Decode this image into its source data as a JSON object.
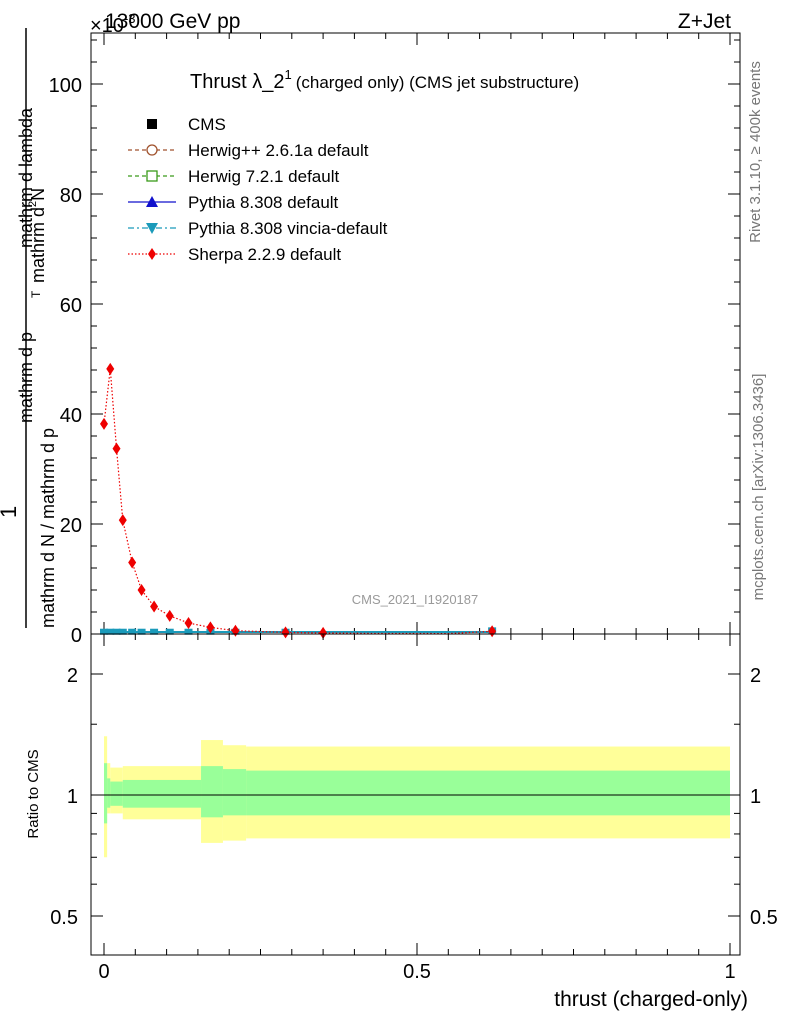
{
  "header": {
    "energy_label": "13000 GeV pp",
    "process_label": "Z+Jet",
    "exponent_label": "×10",
    "exponent_sup": "-3"
  },
  "chart_data": [
    {
      "type": "line",
      "panel": "main",
      "title": "Thrust λ_2",
      "title_sup": "1",
      "subtitle": "(charged only) (CMS jet substructure)",
      "ylabel_numerator": "mathrm d",
      "ylabel_numerator_sup": "2",
      "ylabel_numerator_tail": "N",
      "ylabel_prefix": "1",
      "ylabel_denominator": "mathrm d N / mathrm d p",
      "ylabel_denominator_mid": "mathrm d p",
      "ylabel_denominator_tail": "mathrm d lambda",
      "ylabel_sub": "T",
      "watermark": "CMS_2021_I1920187",
      "xlim": [
        0,
        1
      ],
      "ylim": [
        0,
        110
      ],
      "yticks": [
        0,
        20,
        40,
        60,
        80,
        100
      ],
      "legend_position": "top-left",
      "legend": [
        {
          "label": "CMS",
          "color": "#000000",
          "marker": "filled-square",
          "line": "none"
        },
        {
          "label": "Herwig++ 2.6.1a default",
          "color": "#a0522d",
          "marker": "open-circle",
          "line": "dashed"
        },
        {
          "label": "Herwig 7.2.1 default",
          "color": "#3a9a1a",
          "marker": "open-square",
          "line": "dashed"
        },
        {
          "label": "Pythia 8.308 default",
          "color": "#1010cc",
          "marker": "filled-triangle-up",
          "line": "solid"
        },
        {
          "label": "Pythia 8.308 vincia-default",
          "color": "#1a9aba",
          "marker": "filled-triangle-down",
          "line": "dashdot"
        },
        {
          "label": "Sherpa 2.2.9 default",
          "color": "#ee0000",
          "marker": "filled-diamond",
          "line": "dotted"
        }
      ],
      "series": [
        {
          "name": "Sherpa 2.2.9 default",
          "x": [
            0.0,
            0.01,
            0.02,
            0.03,
            0.045,
            0.06,
            0.08,
            0.105,
            0.135,
            0.17,
            0.21,
            0.29,
            0.35,
            0.43,
            0.55,
            0.62
          ],
          "values": [
            38.2,
            48.2,
            33.7,
            20.7,
            13.0,
            8.0,
            5.0,
            3.3,
            2.0,
            1.2,
            0.6,
            0.3,
            0.2,
            0.1,
            0.08,
            0.5
          ]
        },
        {
          "name": "CMS",
          "x": [
            0.0,
            0.01,
            0.02,
            0.03,
            0.045,
            0.06,
            0.08,
            0.105,
            0.135,
            0.17,
            0.21,
            0.29,
            0.62
          ],
          "values": [
            0.05,
            0.05,
            0.05,
            0.05,
            0.05,
            0.05,
            0.05,
            0.05,
            0.05,
            0.05,
            0.05,
            0.05,
            0.3
          ]
        }
      ]
    },
    {
      "type": "area",
      "panel": "ratio",
      "ylabel": "Ratio to CMS",
      "xlabel": "thrust (charged-only)",
      "xlim": [
        0,
        1
      ],
      "ylim": [
        0.4,
        2.3
      ],
      "yscale": "log",
      "yticks": [
        0.5,
        1,
        2
      ],
      "ytick_labels": [
        "0.5",
        "1",
        "2"
      ],
      "xticks": [
        0,
        0.5,
        1
      ],
      "xtick_labels": [
        "0",
        "0.5",
        "1"
      ],
      "bins": [
        0.0,
        0.005,
        0.01,
        0.03,
        0.155,
        0.19,
        0.227,
        1.0
      ],
      "band_outer": [
        [
          0.7,
          1.4
        ],
        [
          0.9,
          1.2
        ],
        [
          0.9,
          1.17
        ],
        [
          0.87,
          1.18
        ],
        [
          0.76,
          1.37
        ],
        [
          0.77,
          1.33
        ],
        [
          0.78,
          1.32
        ]
      ],
      "band_inner": [
        [
          0.85,
          1.2
        ],
        [
          0.93,
          1.1
        ],
        [
          0.94,
          1.08
        ],
        [
          0.93,
          1.09
        ],
        [
          0.88,
          1.18
        ],
        [
          0.89,
          1.16
        ],
        [
          0.89,
          1.15
        ]
      ],
      "band_colors": {
        "outer": "#ffff99",
        "inner": "#99ff99"
      }
    }
  ],
  "side_labels": {
    "rivet": "Rivet 3.1.10, ≥ 400k events",
    "mcplots": "mcplots.cern.ch [arXiv:1306.3436]"
  }
}
